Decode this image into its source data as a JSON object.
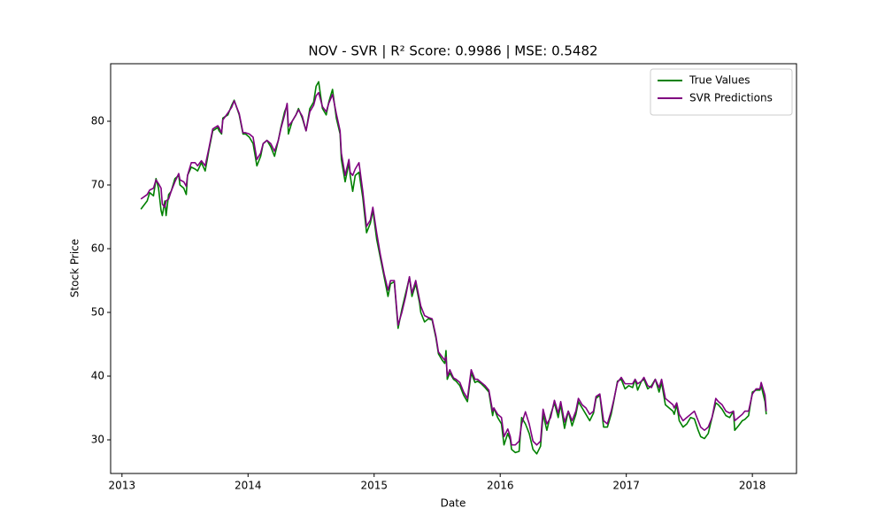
{
  "chart_data": {
    "type": "line",
    "title": "NOV - SVR | R² Score: 0.9986 | MSE: 0.5482",
    "x_label": "Date",
    "y_label": "Stock Price",
    "legend": "upper right",
    "xlim": [
      2012.91,
      2018.35
    ],
    "xticks": [
      2013,
      2014,
      2015,
      2016,
      2017,
      2018
    ],
    "ylim": [
      24.72,
      89.03
    ],
    "yticks": [
      30,
      40,
      50,
      60,
      70,
      80
    ],
    "x": [
      2013.15,
      2013.2,
      2013.22,
      2013.25,
      2013.27,
      2013.29,
      2013.31,
      2013.32,
      2013.34,
      2013.35,
      2013.37,
      2013.39,
      2013.42,
      2013.45,
      2013.46,
      2013.49,
      2013.51,
      2013.52,
      2013.55,
      2013.58,
      2013.6,
      2013.63,
      2013.66,
      2013.69,
      2013.72,
      2013.76,
      2013.77,
      2013.79,
      2013.8,
      2013.84,
      2013.87,
      2013.89,
      2013.93,
      2013.96,
      2013.98,
      2014.01,
      2014.04,
      2014.07,
      2014.1,
      2014.12,
      2014.15,
      2014.18,
      2014.21,
      2014.24,
      2014.26,
      2014.29,
      2014.31,
      2014.32,
      2014.35,
      2014.38,
      2014.4,
      2014.43,
      2014.46,
      2014.49,
      2014.52,
      2014.54,
      2014.56,
      2014.59,
      2014.62,
      2014.64,
      2014.67,
      2014.7,
      2014.73,
      2014.74,
      2014.77,
      2014.8,
      2014.81,
      2014.83,
      2014.85,
      2014.88,
      2014.91,
      2014.94,
      2014.97,
      2014.99,
      2015.02,
      2015.05,
      2015.08,
      2015.11,
      2015.13,
      2015.16,
      2015.19,
      2015.22,
      2015.25,
      2015.28,
      2015.3,
      2015.33,
      2015.36,
      2015.37,
      2015.4,
      2015.43,
      2015.46,
      2015.49,
      2015.51,
      2015.54,
      2015.56,
      2015.57,
      2015.58,
      2015.6,
      2015.63,
      2015.65,
      2015.68,
      2015.71,
      2015.74,
      2015.77,
      2015.8,
      2015.82,
      2015.85,
      2015.88,
      2015.91,
      2015.94,
      2015.95,
      2015.98,
      2016.01,
      2016.03,
      2016.06,
      2016.08,
      2016.09,
      2016.12,
      2016.15,
      2016.17,
      2016.2,
      2016.23,
      2016.26,
      2016.29,
      2016.32,
      2016.34,
      2016.37,
      2016.4,
      2016.43,
      2016.46,
      2016.48,
      2016.51,
      2016.54,
      2016.57,
      2016.6,
      2016.62,
      2016.65,
      2016.68,
      2016.71,
      2016.74,
      2016.76,
      2016.79,
      2016.82,
      2016.85,
      2016.88,
      2016.9,
      2016.93,
      2016.96,
      2016.99,
      2017.02,
      2017.05,
      2017.07,
      2017.09,
      2017.12,
      2017.14,
      2017.17,
      2017.2,
      2017.23,
      2017.26,
      2017.28,
      2017.31,
      2017.34,
      2017.37,
      2017.38,
      2017.4,
      2017.42,
      2017.45,
      2017.48,
      2017.51,
      2017.54,
      2017.57,
      2017.59,
      2017.62,
      2017.65,
      2017.68,
      2017.71,
      2017.73,
      2017.76,
      2017.79,
      2017.82,
      2017.85,
      2017.86,
      2017.89,
      2017.92,
      2017.94,
      2017.97,
      2018,
      2018.03,
      2018.06,
      2018.07,
      2018.1,
      2018.11
    ],
    "series": [
      {
        "name": "True Values",
        "color": "#008000",
        "values": [
          66.2,
          67.5,
          68.8,
          68.3,
          71,
          69.5,
          66,
          65.2,
          67.5,
          65.2,
          68.5,
          69,
          71,
          71.5,
          70,
          69.5,
          68.5,
          71.5,
          72.8,
          72.5,
          72.2,
          73.5,
          72.2,
          75.5,
          78.5,
          79,
          78.5,
          78,
          80.5,
          81,
          82.5,
          83.3,
          81,
          78,
          78,
          77.5,
          76.5,
          73,
          74.5,
          76.5,
          77,
          76,
          74.5,
          77,
          79,
          81.5,
          82.5,
          78,
          80,
          81,
          82,
          80.5,
          78.5,
          82,
          83,
          85.5,
          86.2,
          82,
          81,
          83,
          85,
          80.5,
          78,
          74,
          70.5,
          73.5,
          71.5,
          69,
          71.5,
          72,
          68,
          62.5,
          64,
          66,
          61.5,
          58.5,
          55.5,
          52.5,
          54.5,
          54.8,
          47.5,
          50.5,
          53,
          55.5,
          52.5,
          54.5,
          51.5,
          50,
          48.5,
          49,
          48.8,
          46,
          43.5,
          42.5,
          42,
          44,
          39.5,
          40.5,
          39.5,
          39.2,
          38.5,
          37,
          36,
          40.5,
          39,
          39.2,
          38.8,
          38.2,
          37.5,
          33.8,
          35,
          33.5,
          32.5,
          29.2,
          31,
          30,
          28.5,
          28,
          28.2,
          33.5,
          32.5,
          31,
          28.5,
          27.8,
          29,
          34,
          31.5,
          34,
          35.8,
          33.5,
          35.5,
          31.8,
          34.5,
          32.2,
          34,
          36,
          35,
          34,
          33,
          34.2,
          36.5,
          37,
          32,
          32,
          34,
          36,
          39.2,
          39.5,
          38,
          38.5,
          38.2,
          39.5,
          37.8,
          39.2,
          39.5,
          38,
          38.5,
          39.5,
          37.5,
          39,
          35.5,
          35,
          34.5,
          34,
          35.5,
          33,
          32,
          32.5,
          33.5,
          33.3,
          31.5,
          30.5,
          30.2,
          31,
          33.5,
          35.8,
          35.5,
          34.8,
          33.8,
          33.5,
          34.5,
          31.5,
          32.2,
          33,
          33.2,
          33.8,
          37.5,
          37.8,
          37.8,
          38.5,
          36,
          34
        ]
      },
      {
        "name": "SVR Predictions",
        "color": "#800080",
        "values": [
          67.8,
          68.5,
          69.2,
          69.5,
          70.8,
          70.2,
          69.5,
          67,
          66.5,
          67.5,
          67.8,
          69,
          70.5,
          71.8,
          70.8,
          70.5,
          69.8,
          71.5,
          73.5,
          73.5,
          73,
          73.8,
          73,
          75.8,
          78.8,
          79.3,
          79,
          78.2,
          80.2,
          81.3,
          82.2,
          83.2,
          81.2,
          78.2,
          78.2,
          78,
          77.5,
          74,
          75,
          76.5,
          77,
          76.5,
          75.3,
          77,
          78.8,
          81,
          82.8,
          79.2,
          80,
          81,
          81.8,
          80.8,
          78.5,
          81.5,
          82.5,
          84,
          84.5,
          82.3,
          81.5,
          82.8,
          84.2,
          81.2,
          78.5,
          75,
          71.5,
          74,
          72,
          71.5,
          72.5,
          73.5,
          69,
          63.5,
          64.5,
          66.5,
          62.5,
          59,
          56,
          53.5,
          55,
          55,
          48,
          50,
          52.5,
          55.6,
          53,
          55,
          52,
          51,
          49.5,
          49.2,
          49,
          46.3,
          43.8,
          43,
          42.5,
          43,
          40,
          41,
          39.7,
          39.5,
          39,
          37.5,
          36.5,
          41,
          39.5,
          39.5,
          39,
          38.5,
          37.8,
          34.5,
          35,
          34,
          33.5,
          30.5,
          31.7,
          30.5,
          29.2,
          29.2,
          29.8,
          32.5,
          34.4,
          32.5,
          29.8,
          29.2,
          29.8,
          34.8,
          32.5,
          33.5,
          36.2,
          34.2,
          36,
          32.8,
          34.5,
          33,
          34.5,
          36.5,
          35.5,
          35,
          34,
          34.5,
          36.8,
          37.2,
          33,
          32.5,
          34.5,
          36.2,
          39,
          39.8,
          38.8,
          38.8,
          38.8,
          39.5,
          38.8,
          39.2,
          39.8,
          38.5,
          38.2,
          39.5,
          38.2,
          39.5,
          36.5,
          36,
          35.5,
          35,
          35.8,
          34,
          33,
          33.5,
          34,
          34.5,
          33,
          32,
          31.5,
          32,
          33.5,
          36.5,
          36,
          35.5,
          34.5,
          34.2,
          34.5,
          33,
          33.5,
          34,
          34.5,
          34.5,
          37.2,
          38,
          38,
          39,
          37,
          34.5
        ]
      }
    ]
  }
}
